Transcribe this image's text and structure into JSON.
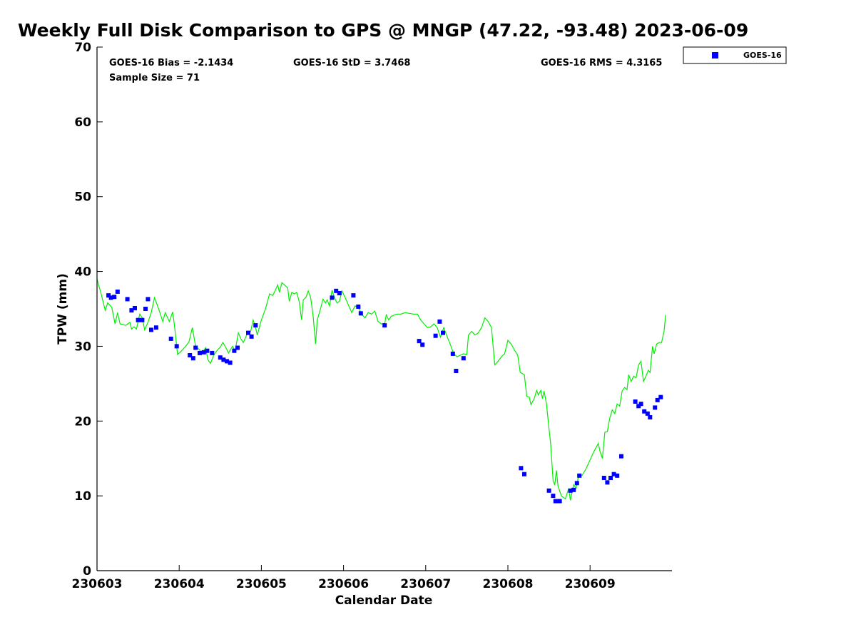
{
  "chart_data": {
    "type": "scatter",
    "title": "Weekly Full Disk Comparison to GPS @ MNGP (47.22, -93.48) 2023-06-09",
    "xlabel": "Calendar Date",
    "ylabel": "TPW (mm)",
    "xlim": [
      0,
      7
    ],
    "ylim": [
      0,
      70
    ],
    "x_ticks": [
      {
        "value": 0,
        "label": "230603"
      },
      {
        "value": 1,
        "label": "230604"
      },
      {
        "value": 2,
        "label": "230605"
      },
      {
        "value": 3,
        "label": "230606"
      },
      {
        "value": 4,
        "label": "230607"
      },
      {
        "value": 5,
        "label": "230608"
      },
      {
        "value": 6,
        "label": "230609"
      }
    ],
    "y_ticks": [
      {
        "value": 0,
        "label": "0"
      },
      {
        "value": 10,
        "label": "10"
      },
      {
        "value": 20,
        "label": "20"
      },
      {
        "value": 30,
        "label": "30"
      },
      {
        "value": 40,
        "label": "40"
      },
      {
        "value": 50,
        "label": "50"
      },
      {
        "value": 60,
        "label": "60"
      },
      {
        "value": 70,
        "label": "70"
      }
    ],
    "stats": {
      "bias": "GOES-16 Bias = -2.1434",
      "std": "GOES-16 StD = 3.7468",
      "rms": "GOES-16 RMS = 4.3165",
      "sample_size": "Sample Size = 71"
    },
    "legend": {
      "label": "GOES-16",
      "position": "top-right",
      "color": "#0000ff"
    },
    "gps_series": {
      "name": "GPS",
      "color": "#00ee00",
      "points": [
        [
          0.0,
          39.0
        ],
        [
          0.05,
          37.0
        ],
        [
          0.1,
          34.8
        ],
        [
          0.13,
          35.8
        ],
        [
          0.18,
          35.2
        ],
        [
          0.22,
          33.0
        ],
        [
          0.25,
          34.5
        ],
        [
          0.28,
          33.0
        ],
        [
          0.35,
          32.8
        ],
        [
          0.4,
          33.2
        ],
        [
          0.42,
          32.3
        ],
        [
          0.45,
          32.6
        ],
        [
          0.48,
          32.3
        ],
        [
          0.52,
          34.3
        ],
        [
          0.55,
          33.8
        ],
        [
          0.58,
          32.2
        ],
        [
          0.62,
          33.2
        ],
        [
          0.66,
          34.5
        ],
        [
          0.7,
          36.5
        ],
        [
          0.75,
          35.0
        ],
        [
          0.8,
          33.3
        ],
        [
          0.83,
          34.5
        ],
        [
          0.88,
          33.3
        ],
        [
          0.92,
          34.6
        ],
        [
          0.94,
          33.0
        ],
        [
          0.96,
          31.0
        ],
        [
          0.98,
          28.9
        ],
        [
          1.02,
          29.3
        ],
        [
          1.08,
          30.0
        ],
        [
          1.12,
          30.6
        ],
        [
          1.16,
          32.5
        ],
        [
          1.2,
          30.0
        ],
        [
          1.25,
          29.5
        ],
        [
          1.28,
          29.0
        ],
        [
          1.32,
          29.8
        ],
        [
          1.35,
          28.2
        ],
        [
          1.38,
          27.7
        ],
        [
          1.42,
          28.8
        ],
        [
          1.45,
          29.3
        ],
        [
          1.5,
          29.9
        ],
        [
          1.53,
          30.5
        ],
        [
          1.56,
          30.0
        ],
        [
          1.6,
          29.1
        ],
        [
          1.62,
          29.5
        ],
        [
          1.65,
          30.0
        ],
        [
          1.68,
          29.3
        ],
        [
          1.72,
          31.8
        ],
        [
          1.75,
          31.0
        ],
        [
          1.78,
          30.5
        ],
        [
          1.82,
          31.5
        ],
        [
          1.87,
          32.0
        ],
        [
          1.9,
          33.5
        ],
        [
          1.93,
          32.5
        ],
        [
          1.95,
          31.5
        ],
        [
          2.0,
          33.5
        ],
        [
          2.05,
          35.0
        ],
        [
          2.1,
          37.0
        ],
        [
          2.14,
          36.8
        ],
        [
          2.17,
          37.5
        ],
        [
          2.2,
          38.2
        ],
        [
          2.22,
          37.2
        ],
        [
          2.25,
          38.5
        ],
        [
          2.28,
          38.2
        ],
        [
          2.32,
          37.8
        ],
        [
          2.34,
          36.0
        ],
        [
          2.37,
          37.2
        ],
        [
          2.4,
          37.0
        ],
        [
          2.43,
          37.2
        ],
        [
          2.46,
          36.0
        ],
        [
          2.49,
          33.5
        ],
        [
          2.51,
          36.2
        ],
        [
          2.54,
          36.5
        ],
        [
          2.57,
          37.4
        ],
        [
          2.6,
          36.5
        ],
        [
          2.63,
          34.0
        ],
        [
          2.66,
          30.3
        ],
        [
          2.68,
          33.5
        ],
        [
          2.72,
          35.0
        ],
        [
          2.75,
          36.3
        ],
        [
          2.78,
          35.8
        ],
        [
          2.8,
          36.2
        ],
        [
          2.83,
          35.4
        ],
        [
          2.86,
          37.5
        ],
        [
          2.89,
          36.5
        ],
        [
          2.92,
          35.8
        ],
        [
          2.95,
          36.0
        ],
        [
          2.98,
          37.4
        ],
        [
          3.02,
          36.5
        ],
        [
          3.06,
          35.5
        ],
        [
          3.1,
          34.5
        ],
        [
          3.14,
          35.4
        ],
        [
          3.18,
          35.2
        ],
        [
          3.22,
          34.3
        ],
        [
          3.26,
          33.8
        ],
        [
          3.3,
          34.5
        ],
        [
          3.34,
          34.3
        ],
        [
          3.38,
          34.7
        ],
        [
          3.42,
          33.3
        ],
        [
          3.46,
          33.0
        ],
        [
          3.5,
          33.0
        ],
        [
          3.52,
          34.2
        ],
        [
          3.55,
          33.5
        ],
        [
          3.58,
          34.0
        ],
        [
          3.62,
          34.2
        ],
        [
          3.65,
          34.3
        ],
        [
          3.7,
          34.3
        ],
        [
          3.75,
          34.5
        ],
        [
          3.8,
          34.4
        ],
        [
          3.85,
          34.3
        ],
        [
          3.9,
          34.3
        ],
        [
          3.94,
          33.5
        ],
        [
          3.98,
          33.0
        ],
        [
          4.02,
          32.5
        ],
        [
          4.06,
          32.6
        ],
        [
          4.1,
          33.0
        ],
        [
          4.14,
          32.5
        ],
        [
          4.18,
          31.2
        ],
        [
          4.22,
          32.5
        ],
        [
          4.26,
          31.3
        ],
        [
          4.3,
          30.2
        ],
        [
          4.34,
          29.0
        ],
        [
          4.38,
          28.6
        ],
        [
          4.42,
          28.8
        ],
        [
          4.46,
          29.0
        ],
        [
          4.5,
          28.9
        ],
        [
          4.52,
          31.5
        ],
        [
          4.56,
          32.0
        ],
        [
          4.6,
          31.5
        ],
        [
          4.64,
          31.8
        ],
        [
          4.68,
          32.5
        ],
        [
          4.72,
          33.8
        ],
        [
          4.76,
          33.3
        ],
        [
          4.8,
          32.5
        ],
        [
          4.82,
          30.0
        ],
        [
          4.84,
          27.5
        ],
        [
          4.88,
          28.0
        ],
        [
          4.92,
          28.6
        ],
        [
          4.96,
          29.0
        ],
        [
          5.0,
          30.8
        ],
        [
          5.04,
          30.3
        ],
        [
          5.08,
          29.5
        ],
        [
          5.12,
          28.8
        ],
        [
          5.15,
          26.5
        ],
        [
          5.2,
          26.2
        ],
        [
          5.23,
          23.3
        ],
        [
          5.26,
          23.2
        ],
        [
          5.28,
          22.2
        ],
        [
          5.32,
          23.0
        ],
        [
          5.35,
          24.1
        ],
        [
          5.37,
          23.5
        ],
        [
          5.4,
          24.1
        ],
        [
          5.42,
          23.0
        ],
        [
          5.44,
          24.0
        ],
        [
          5.47,
          22.3
        ],
        [
          5.5,
          19.0
        ],
        [
          5.52,
          17.0
        ],
        [
          5.55,
          12.0
        ],
        [
          5.57,
          11.5
        ],
        [
          5.59,
          13.4
        ],
        [
          5.61,
          11.3
        ],
        [
          5.65,
          10.0
        ],
        [
          5.7,
          9.6
        ],
        [
          5.72,
          10.3
        ],
        [
          5.74,
          11.0
        ],
        [
          5.76,
          9.4
        ],
        [
          5.8,
          11.5
        ],
        [
          5.83,
          11.0
        ],
        [
          5.86,
          12.7
        ],
        [
          5.9,
          12.7
        ],
        [
          5.95,
          13.6
        ],
        [
          6.0,
          14.8
        ],
        [
          6.05,
          16.0
        ],
        [
          6.1,
          17.0
        ],
        [
          6.12,
          16.0
        ],
        [
          6.15,
          15.0
        ],
        [
          6.18,
          18.5
        ],
        [
          6.21,
          18.6
        ],
        [
          6.24,
          20.4
        ],
        [
          6.27,
          21.5
        ],
        [
          6.3,
          21.0
        ],
        [
          6.33,
          22.3
        ],
        [
          6.36,
          22.0
        ],
        [
          6.39,
          24.0
        ],
        [
          6.42,
          24.5
        ],
        [
          6.45,
          24.2
        ],
        [
          6.47,
          26.2
        ],
        [
          6.5,
          25.3
        ],
        [
          6.53,
          26.0
        ],
        [
          6.56,
          25.8
        ],
        [
          6.59,
          27.5
        ],
        [
          6.62,
          28.0
        ],
        [
          6.65,
          25.3
        ],
        [
          6.68,
          26.0
        ],
        [
          6.71,
          26.8
        ],
        [
          6.73,
          26.5
        ],
        [
          6.76,
          30.0
        ],
        [
          6.78,
          29.0
        ],
        [
          6.81,
          30.3
        ],
        [
          6.84,
          30.5
        ],
        [
          6.87,
          30.5
        ],
        [
          6.9,
          32.0
        ],
        [
          6.92,
          34.2
        ]
      ]
    },
    "goes16_series": {
      "name": "GOES-16",
      "color": "#0000ff",
      "points": [
        [
          0.14,
          36.8
        ],
        [
          0.17,
          36.5
        ],
        [
          0.21,
          36.6
        ],
        [
          0.25,
          37.3
        ],
        [
          0.37,
          36.3
        ],
        [
          0.42,
          34.8
        ],
        [
          0.46,
          35.1
        ],
        [
          0.5,
          33.5
        ],
        [
          0.55,
          33.5
        ],
        [
          0.59,
          35.0
        ],
        [
          0.62,
          36.3
        ],
        [
          0.66,
          32.2
        ],
        [
          0.72,
          32.5
        ],
        [
          0.9,
          31.0
        ],
        [
          0.97,
          30.0
        ],
        [
          1.13,
          28.8
        ],
        [
          1.17,
          28.4
        ],
        [
          1.2,
          29.8
        ],
        [
          1.25,
          29.1
        ],
        [
          1.3,
          29.2
        ],
        [
          1.34,
          29.4
        ],
        [
          1.4,
          29.1
        ],
        [
          1.5,
          28.5
        ],
        [
          1.54,
          28.2
        ],
        [
          1.58,
          28.0
        ],
        [
          1.62,
          27.8
        ],
        [
          1.67,
          29.4
        ],
        [
          1.71,
          29.8
        ],
        [
          1.84,
          31.8
        ],
        [
          1.88,
          31.3
        ],
        [
          1.93,
          32.8
        ],
        [
          2.86,
          36.5
        ],
        [
          2.91,
          37.4
        ],
        [
          2.95,
          37.1
        ],
        [
          3.12,
          36.8
        ],
        [
          3.18,
          35.3
        ],
        [
          3.21,
          34.4
        ],
        [
          3.5,
          32.8
        ],
        [
          3.92,
          30.7
        ],
        [
          3.96,
          30.2
        ],
        [
          4.12,
          31.4
        ],
        [
          4.17,
          33.3
        ],
        [
          4.21,
          31.8
        ],
        [
          4.33,
          29.0
        ],
        [
          4.37,
          26.7
        ],
        [
          4.46,
          28.4
        ],
        [
          5.16,
          13.7
        ],
        [
          5.2,
          12.9
        ],
        [
          5.5,
          10.7
        ],
        [
          5.55,
          10.0
        ],
        [
          5.58,
          9.3
        ],
        [
          5.63,
          9.3
        ],
        [
          5.76,
          10.7
        ],
        [
          5.8,
          10.8
        ],
        [
          5.84,
          11.7
        ],
        [
          5.87,
          12.7
        ],
        [
          6.17,
          12.4
        ],
        [
          6.21,
          11.8
        ],
        [
          6.25,
          12.4
        ],
        [
          6.29,
          12.9
        ],
        [
          6.33,
          12.7
        ],
        [
          6.38,
          15.3
        ],
        [
          6.55,
          22.6
        ],
        [
          6.59,
          22.0
        ],
        [
          6.62,
          22.3
        ],
        [
          6.66,
          21.3
        ],
        [
          6.7,
          21.0
        ],
        [
          6.73,
          20.5
        ],
        [
          6.79,
          21.8
        ],
        [
          6.82,
          22.8
        ],
        [
          6.86,
          23.2
        ]
      ]
    }
  }
}
